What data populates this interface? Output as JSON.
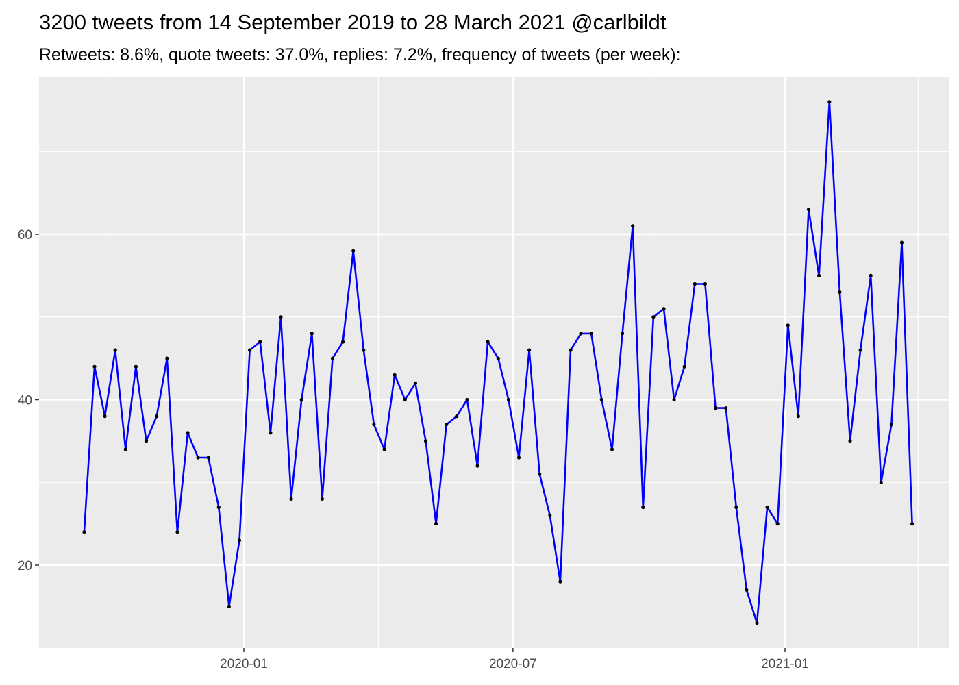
{
  "chart_data": {
    "type": "line",
    "title": "3200 tweets from 14 September 2019 to 28 March 2021 @carlbildt",
    "subtitle": "Retweets: 8.6%, quote tweets: 37.0%, replies: 7.2%, frequency of tweets (per week):",
    "xlabel": "",
    "ylabel": "",
    "x_ticks": [
      "2020-01",
      "2020-07",
      "2021-01"
    ],
    "y_ticks": [
      20,
      40,
      60
    ],
    "ylim": [
      10,
      79
    ],
    "grid": true,
    "line_color": "#0000ff",
    "point_color": "#000000",
    "panel_color": "#ebebeb",
    "series": [
      {
        "x": [
          "2019-09-15",
          "2019-09-22",
          "2019-09-29",
          "2019-10-06",
          "2019-10-13",
          "2019-10-20",
          "2019-10-27",
          "2019-11-03",
          "2019-11-10",
          "2019-11-17",
          "2019-11-24",
          "2019-12-01",
          "2019-12-08",
          "2019-12-15",
          "2019-12-22",
          "2019-12-29",
          "2020-01-05",
          "2020-01-12",
          "2020-01-19",
          "2020-01-26",
          "2020-02-02",
          "2020-02-09",
          "2020-02-16",
          "2020-02-23",
          "2020-03-01",
          "2020-03-08",
          "2020-03-15",
          "2020-03-22",
          "2020-03-29",
          "2020-04-05",
          "2020-04-12",
          "2020-04-19",
          "2020-04-26",
          "2020-05-03",
          "2020-05-10",
          "2020-05-17",
          "2020-05-24",
          "2020-05-31",
          "2020-06-07",
          "2020-06-14",
          "2020-06-21",
          "2020-06-28",
          "2020-07-05",
          "2020-07-12",
          "2020-07-19",
          "2020-07-26",
          "2020-08-02",
          "2020-08-09",
          "2020-08-16",
          "2020-08-23",
          "2020-08-30",
          "2020-09-06",
          "2020-09-13",
          "2020-09-20",
          "2020-09-27",
          "2020-10-04",
          "2020-10-11",
          "2020-10-18",
          "2020-10-25",
          "2020-11-01",
          "2020-11-08",
          "2020-11-15",
          "2020-11-22",
          "2020-11-29",
          "2020-12-06",
          "2020-12-13",
          "2020-12-20",
          "2020-12-27",
          "2021-01-03",
          "2021-01-10",
          "2021-01-17",
          "2021-01-24",
          "2021-01-31",
          "2021-02-07",
          "2021-02-14",
          "2021-02-21",
          "2021-02-28",
          "2021-03-07",
          "2021-03-14",
          "2021-03-21",
          "2021-03-28"
        ],
        "values": [
          24,
          44,
          38,
          46,
          34,
          44,
          35,
          38,
          45,
          24,
          36,
          33,
          33,
          27,
          15,
          23,
          46,
          47,
          36,
          50,
          28,
          40,
          48,
          28,
          45,
          47,
          58,
          46,
          37,
          34,
          43,
          40,
          42,
          35,
          25,
          37,
          38,
          40,
          32,
          47,
          45,
          40,
          33,
          46,
          31,
          26,
          18,
          46,
          48,
          48,
          40,
          34,
          48,
          61,
          27,
          50,
          51,
          40,
          44,
          54,
          54,
          39,
          39,
          27,
          17,
          13,
          27,
          25,
          49,
          38,
          63,
          55,
          76,
          53,
          35,
          46,
          55,
          30,
          37,
          59,
          25
        ]
      }
    ]
  }
}
